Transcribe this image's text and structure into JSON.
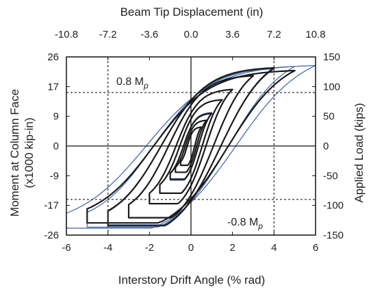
{
  "chart_data": {
    "type": "line",
    "xlabel": "Interstory Drift Angle (% rad)",
    "x_ticks": [
      "-6",
      "-4",
      "-2",
      "0",
      "2",
      "4",
      "6"
    ],
    "xlim": [
      -6,
      6
    ],
    "x2label": "Beam Tip Displacement (in)",
    "x2_ticks": [
      "-10.8",
      "-7.2",
      "-3.6",
      "0.0",
      "3.6",
      "7.2",
      "10.8"
    ],
    "x2lim": [
      -10.8,
      10.8
    ],
    "ylabel_lines": [
      "Moment at Column Face",
      "(x1000 kip-in)"
    ],
    "y_ticks": [
      "26",
      "17",
      "9",
      "0",
      "-9",
      "-17",
      "-26"
    ],
    "ylim": [
      -26,
      26
    ],
    "y2label": "Applied Load (kips)",
    "y2_ticks": [
      "150",
      "100",
      "50",
      "0",
      "-50",
      "-100",
      "-150"
    ],
    "y2lim": [
      -150,
      150
    ],
    "grid": "dashed reference lines",
    "annotations": {
      "pos_label": "0.8 M",
      "pos_sub": "p",
      "neg_label": "-0.8 M",
      "neg_sub": "p",
      "pos_level": 15.6,
      "neg_level": -15.6,
      "drift_refs": [
        -4,
        4
      ]
    },
    "series": [
      {
        "color": "#3a62a6",
        "loops": [
          {
            "amp": 1.0,
            "peak": 9.8
          },
          {
            "amp": 2.0,
            "peak": 16.5
          },
          {
            "amp": 3.0,
            "peak": 20.5
          },
          {
            "amp": 4.0,
            "peak": 22.5
          },
          {
            "amp": 5.0,
            "peak": 23.2
          },
          {
            "amp": 6.0,
            "peak": 23.5
          }
        ]
      },
      {
        "color": "#1a1a1a",
        "loops": [
          {
            "amp": 0.5,
            "peak": 5.5
          },
          {
            "amp": 0.75,
            "peak": 7.5
          },
          {
            "amp": 1.0,
            "peak": 9.5
          },
          {
            "amp": 1.5,
            "peak": 13.5
          },
          {
            "amp": 2.0,
            "peak": 16.5
          },
          {
            "amp": 3.0,
            "peak": 20.5
          },
          {
            "amp": 4.0,
            "peak": 22.8
          },
          {
            "amp": 5.0,
            "peak": 22.0
          }
        ]
      }
    ]
  }
}
